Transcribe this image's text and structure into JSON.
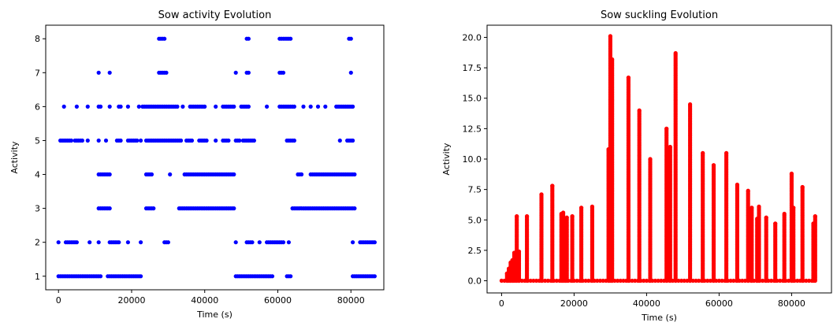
{
  "chart_data": [
    {
      "type": "scatter",
      "title": "Sow activity Evolution",
      "xlabel": "Time (s)",
      "ylabel": "Activity",
      "xlim": [
        -3500,
        89000
      ],
      "ylim": [
        0.6,
        8.4
      ],
      "xticks": [
        0,
        20000,
        40000,
        60000,
        80000
      ],
      "yticks": [
        1,
        2,
        3,
        4,
        5,
        6,
        7,
        8
      ],
      "grid": false,
      "series": [
        {
          "color": "#0000ff",
          "segments": [
            {
              "y": 1,
              "ranges": [
                [
                  0,
                  11500
                ],
                [
                  13500,
                  22500
                ],
                [
                  48500,
                  58500
                ],
                [
                  62500,
                  63500
                ],
                [
                  80500,
                  86500
                ]
              ]
            },
            {
              "y": 2,
              "ranges": [
                [
                  0,
                  0
                ],
                [
                  2000,
                  5000
                ],
                [
                  8500,
                  8500
                ],
                [
                  11000,
                  11000
                ],
                [
                  14000,
                  16500
                ],
                [
                  19000,
                  19000
                ],
                [
                  22500,
                  22500
                ],
                [
                  29000,
                  30000
                ],
                [
                  48500,
                  48500
                ],
                [
                  51500,
                  53000
                ],
                [
                  55000,
                  55000
                ],
                [
                  57000,
                  61500
                ],
                [
                  63000,
                  63000
                ],
                [
                  80500,
                  80500
                ],
                [
                  82500,
                  86500
                ]
              ]
            },
            {
              "y": 3,
              "ranges": [
                [
                  11000,
                  14000
                ],
                [
                  24000,
                  26000
                ],
                [
                  33000,
                  48000
                ],
                [
                  64000,
                  81000
                ]
              ]
            },
            {
              "y": 4,
              "ranges": [
                [
                  11000,
                  14000
                ],
                [
                  24000,
                  25500
                ],
                [
                  30500,
                  30500
                ],
                [
                  34500,
                  48000
                ],
                [
                  65500,
                  66500
                ],
                [
                  69000,
                  81000
                ]
              ]
            },
            {
              "y": 5,
              "ranges": [
                [
                  500,
                  3500
                ],
                [
                  4500,
                  6500
                ],
                [
                  8000,
                  8000
                ],
                [
                  11000,
                  11000
                ],
                [
                  13000,
                  13000
                ],
                [
                  16000,
                  17000
                ],
                [
                  19000,
                  21500
                ],
                [
                  22500,
                  22500
                ],
                [
                  24000,
                  27500
                ],
                [
                  28000,
                  33500
                ],
                [
                  35000,
                  36500
                ],
                [
                  38500,
                  40500
                ],
                [
                  43000,
                  43000
                ],
                [
                  45000,
                  46500
                ],
                [
                  48500,
                  49500
                ],
                [
                  50500,
                  53500
                ],
                [
                  62500,
                  64500
                ],
                [
                  77000,
                  77000
                ],
                [
                  79000,
                  80500
                ]
              ]
            },
            {
              "y": 6,
              "ranges": [
                [
                  1500,
                  1500
                ],
                [
                  5000,
                  5000
                ],
                [
                  8000,
                  8000
                ],
                [
                  11000,
                  11500
                ],
                [
                  14000,
                  14000
                ],
                [
                  16500,
                  17000
                ],
                [
                  19000,
                  19000
                ],
                [
                  22000,
                  22000
                ],
                [
                  23000,
                  32500
                ],
                [
                  34000,
                  34000
                ],
                [
                  36000,
                  40000
                ],
                [
                  43000,
                  43000
                ],
                [
                  45000,
                  48000
                ],
                [
                  50000,
                  52000
                ],
                [
                  57000,
                  57000
                ],
                [
                  60500,
                  64500
                ],
                [
                  67000,
                  67000
                ],
                [
                  69000,
                  69000
                ],
                [
                  71000,
                  71000
                ],
                [
                  73000,
                  73000
                ],
                [
                  76000,
                  80500
                ]
              ]
            },
            {
              "y": 7,
              "ranges": [
                [
                  11000,
                  11000
                ],
                [
                  14000,
                  14000
                ],
                [
                  27500,
                  29500
                ],
                [
                  48500,
                  48500
                ],
                [
                  51500,
                  52000
                ],
                [
                  60500,
                  61500
                ],
                [
                  80000,
                  80000
                ]
              ]
            },
            {
              "y": 8,
              "ranges": [
                [
                  27500,
                  29000
                ],
                [
                  51500,
                  52000
                ],
                [
                  60500,
                  63500
                ],
                [
                  79500,
                  80000
                ]
              ]
            }
          ]
        }
      ]
    },
    {
      "type": "scatter",
      "title": "Sow suckling Evolution",
      "xlabel": "Time (s)",
      "ylabel": "Activity",
      "xlim": [
        -4000,
        91000
      ],
      "ylim": [
        -1.0,
        21.0
      ],
      "xticks": [
        0,
        20000,
        40000,
        60000,
        80000
      ],
      "yticks": [
        0.0,
        2.5,
        5.0,
        7.5,
        10.0,
        12.5,
        15.0,
        17.5,
        20.0
      ],
      "grid": false,
      "series": [
        {
          "color": "#ff0000",
          "baseline": {
            "y": 0.0,
            "range": [
              0,
              86500
            ]
          },
          "columns": [
            {
              "x": 1500,
              "ymax": 0.6
            },
            {
              "x": 2000,
              "ymax": 1.0
            },
            {
              "x": 2500,
              "ymax": 1.5
            },
            {
              "x": 3000,
              "ymax": 1.7
            },
            {
              "x": 3500,
              "ymax": 2.3
            },
            {
              "x": 4200,
              "ymax": 5.3
            },
            {
              "x": 4800,
              "ymax": 2.4
            },
            {
              "x": 7000,
              "ymax": 5.3
            },
            {
              "x": 11000,
              "ymax": 7.1
            },
            {
              "x": 14000,
              "ymax": 7.8
            },
            {
              "x": 16500,
              "ymax": 5.5
            },
            {
              "x": 17000,
              "ymax": 5.6
            },
            {
              "x": 17500,
              "ymax": 5.1
            },
            {
              "x": 18000,
              "ymax": 5.2
            },
            {
              "x": 19500,
              "ymax": 5.3
            },
            {
              "x": 22000,
              "ymax": 6.0
            },
            {
              "x": 25000,
              "ymax": 6.1
            },
            {
              "x": 29500,
              "ymax": 10.8
            },
            {
              "x": 30000,
              "ymax": 20.1
            },
            {
              "x": 30500,
              "ymax": 18.2
            },
            {
              "x": 35000,
              "ymax": 16.7
            },
            {
              "x": 38000,
              "ymax": 14.0
            },
            {
              "x": 41000,
              "ymax": 10.0
            },
            {
              "x": 45500,
              "ymax": 12.5
            },
            {
              "x": 46500,
              "ymax": 11.0
            },
            {
              "x": 48000,
              "ymax": 18.7
            },
            {
              "x": 52000,
              "ymax": 14.5
            },
            {
              "x": 55500,
              "ymax": 10.5
            },
            {
              "x": 58500,
              "ymax": 9.5
            },
            {
              "x": 62000,
              "ymax": 10.5
            },
            {
              "x": 65000,
              "ymax": 7.9
            },
            {
              "x": 68000,
              "ymax": 7.4
            },
            {
              "x": 69000,
              "ymax": 6.0
            },
            {
              "x": 70500,
              "ymax": 5.1
            },
            {
              "x": 71000,
              "ymax": 6.1
            },
            {
              "x": 73000,
              "ymax": 5.2
            },
            {
              "x": 75500,
              "ymax": 4.7
            },
            {
              "x": 78000,
              "ymax": 5.5
            },
            {
              "x": 80000,
              "ymax": 8.8
            },
            {
              "x": 80500,
              "ymax": 6.0
            },
            {
              "x": 83000,
              "ymax": 7.7
            },
            {
              "x": 86000,
              "ymax": 4.7
            },
            {
              "x": 86500,
              "ymax": 5.3
            }
          ]
        }
      ]
    }
  ]
}
